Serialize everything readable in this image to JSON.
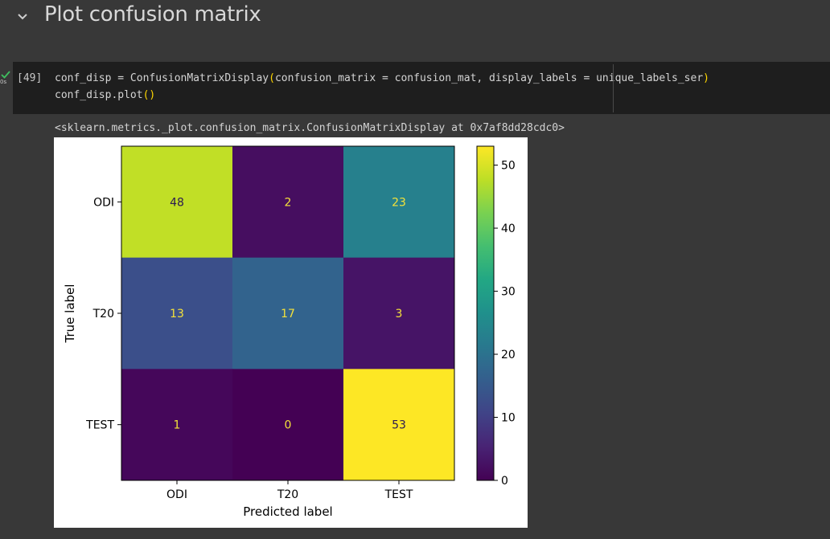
{
  "section": {
    "title": "Plot confusion matrix",
    "chevron_icon": "chevron-down-icon"
  },
  "cell": {
    "execution_count": "[49]",
    "run_time": "0s",
    "status_icon": "check-icon",
    "code_line1_prefix": "conf_disp = ConfusionMatrixDisplay",
    "code_line1_args": "confusion_matrix = confusion_mat, display_labels = unique_labels_ser",
    "code_line2_prefix": "conf_disp.plot",
    "open_paren": "(",
    "close_paren": ")",
    "empty_parens": "()"
  },
  "output": {
    "repr": "<sklearn.metrics._plot.confusion_matrix.ConfusionMatrixDisplay at 0x7af8dd28cdc0>"
  },
  "chart_data": {
    "type": "heatmap",
    "x_categories": [
      "ODI",
      "T20",
      "TEST"
    ],
    "y_categories": [
      "ODI",
      "T20",
      "TEST"
    ],
    "values": [
      [
        48,
        2,
        23
      ],
      [
        13,
        17,
        3
      ],
      [
        1,
        0,
        53
      ]
    ],
    "xlabel": "Predicted label",
    "ylabel": "True label",
    "colormap": "viridis",
    "colorbar": {
      "range": [
        0,
        53
      ],
      "ticks": [
        0,
        10,
        20,
        30,
        40,
        50
      ]
    },
    "grid": false
  }
}
